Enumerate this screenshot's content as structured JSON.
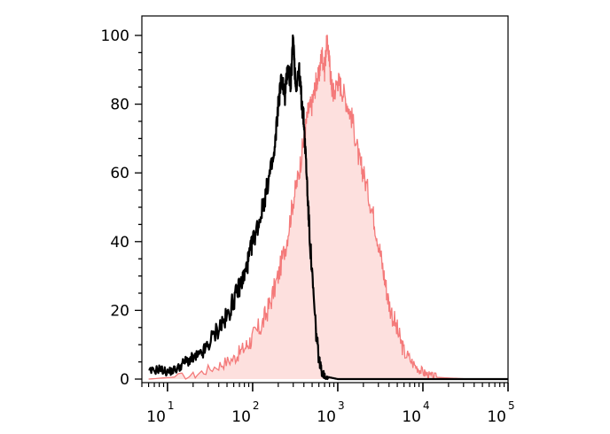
{
  "chart_data": {
    "type": "area",
    "title": "",
    "xlabel": "",
    "ylabel": "",
    "x_scale": "log",
    "xlim": [
      5,
      100000
    ],
    "ylim": [
      0,
      100
    ],
    "x_ticks": [
      {
        "value": 10,
        "base": "10",
        "exp": "1"
      },
      {
        "value": 100,
        "base": "10",
        "exp": "2"
      },
      {
        "value": 1000,
        "base": "10",
        "exp": "3"
      },
      {
        "value": 10000,
        "base": "10",
        "exp": "4"
      },
      {
        "value": 100000,
        "base": "10",
        "exp": "5"
      }
    ],
    "y_ticks": [
      "0",
      "20",
      "40",
      "60",
      "80",
      "100"
    ],
    "grid": false,
    "legend": "none",
    "series": [
      {
        "style": "filled",
        "color": "#f47a7a",
        "fill": "#fde0de",
        "x": [
          6,
          20,
          40,
          60,
          80,
          100,
          130,
          160,
          200,
          250,
          300,
          350,
          400,
          450,
          500,
          550,
          600,
          650,
          700,
          750,
          800,
          850,
          900,
          1000,
          1100,
          1300,
          1500,
          1800,
          2000,
          2500,
          3000,
          3500,
          4000,
          5000,
          6000,
          8000,
          10000,
          12000,
          15000,
          20000,
          30000,
          50000,
          100000
        ],
        "y": [
          0,
          1,
          4,
          6,
          9,
          12,
          16,
          22,
          30,
          40,
          52,
          60,
          70,
          78,
          80,
          86,
          88,
          95,
          90,
          100,
          92,
          85,
          83,
          87,
          85,
          80,
          75,
          63,
          60,
          50,
          40,
          30,
          22,
          14,
          8,
          4,
          2,
          1,
          0.5,
          0.3,
          0.1,
          0,
          0
        ]
      },
      {
        "style": "line",
        "color": "#000000",
        "x": [
          6,
          8,
          10,
          13,
          16,
          20,
          25,
          30,
          40,
          50,
          60,
          70,
          80,
          90,
          100,
          120,
          140,
          160,
          180,
          200,
          220,
          240,
          260,
          280,
          300,
          320,
          350,
          380,
          400,
          430,
          460,
          500,
          550,
          600,
          650,
          700,
          800,
          1000,
          1500,
          2000,
          5000,
          100000
        ],
        "y": [
          2,
          3,
          2,
          3,
          5,
          6,
          7,
          10,
          15,
          18,
          23,
          27,
          30,
          35,
          40,
          46,
          53,
          60,
          65,
          80,
          88,
          82,
          92,
          85,
          100,
          85,
          90,
          80,
          75,
          60,
          45,
          30,
          15,
          6,
          2,
          1,
          0.5,
          0,
          0,
          0,
          0,
          0
        ]
      }
    ]
  }
}
